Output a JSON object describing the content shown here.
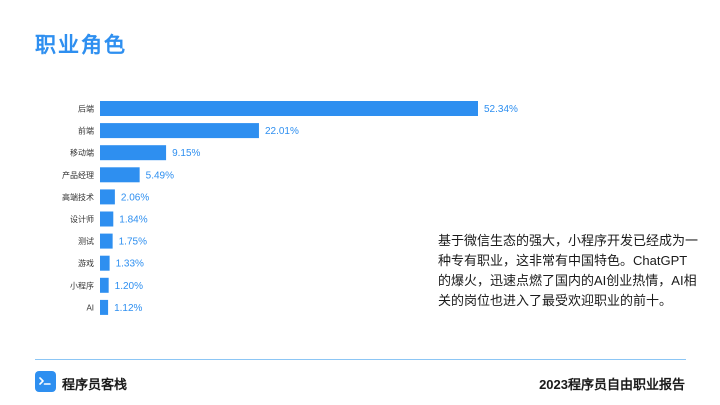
{
  "page": {
    "title": "职业角色",
    "note": "基于微信生态的强大，小程序开发已经成为一种专有职业，这非常有中国特色。ChatGPT的爆火，迅速点燃了国内的AI创业热情，AI相关的岗位也进入了最受欢迎职业的前十。"
  },
  "footer": {
    "brand": "程序员客栈",
    "report_title": "2023程序员自由职业报告",
    "icon": "terminal-icon"
  },
  "colors": {
    "accent": "#2e8ff0",
    "divider": "#8cc6f5"
  },
  "chart_data": {
    "type": "bar",
    "orientation": "horizontal",
    "categories": [
      "后端",
      "前端",
      "移动端",
      "产品经理",
      "高端技术",
      "设计师",
      "测试",
      "游戏",
      "小程序",
      "AI"
    ],
    "values": [
      52.34,
      22.01,
      9.15,
      5.49,
      2.06,
      1.84,
      1.75,
      1.33,
      1.2,
      1.12
    ],
    "value_labels": [
      "52.34%",
      "22.01%",
      "9.15%",
      "5.49%",
      "2.06%",
      "1.84%",
      "1.75%",
      "1.33%",
      "1.20%",
      "1.12%"
    ],
    "xlim": [
      0,
      52.34
    ],
    "grid": false,
    "legend": "none"
  }
}
